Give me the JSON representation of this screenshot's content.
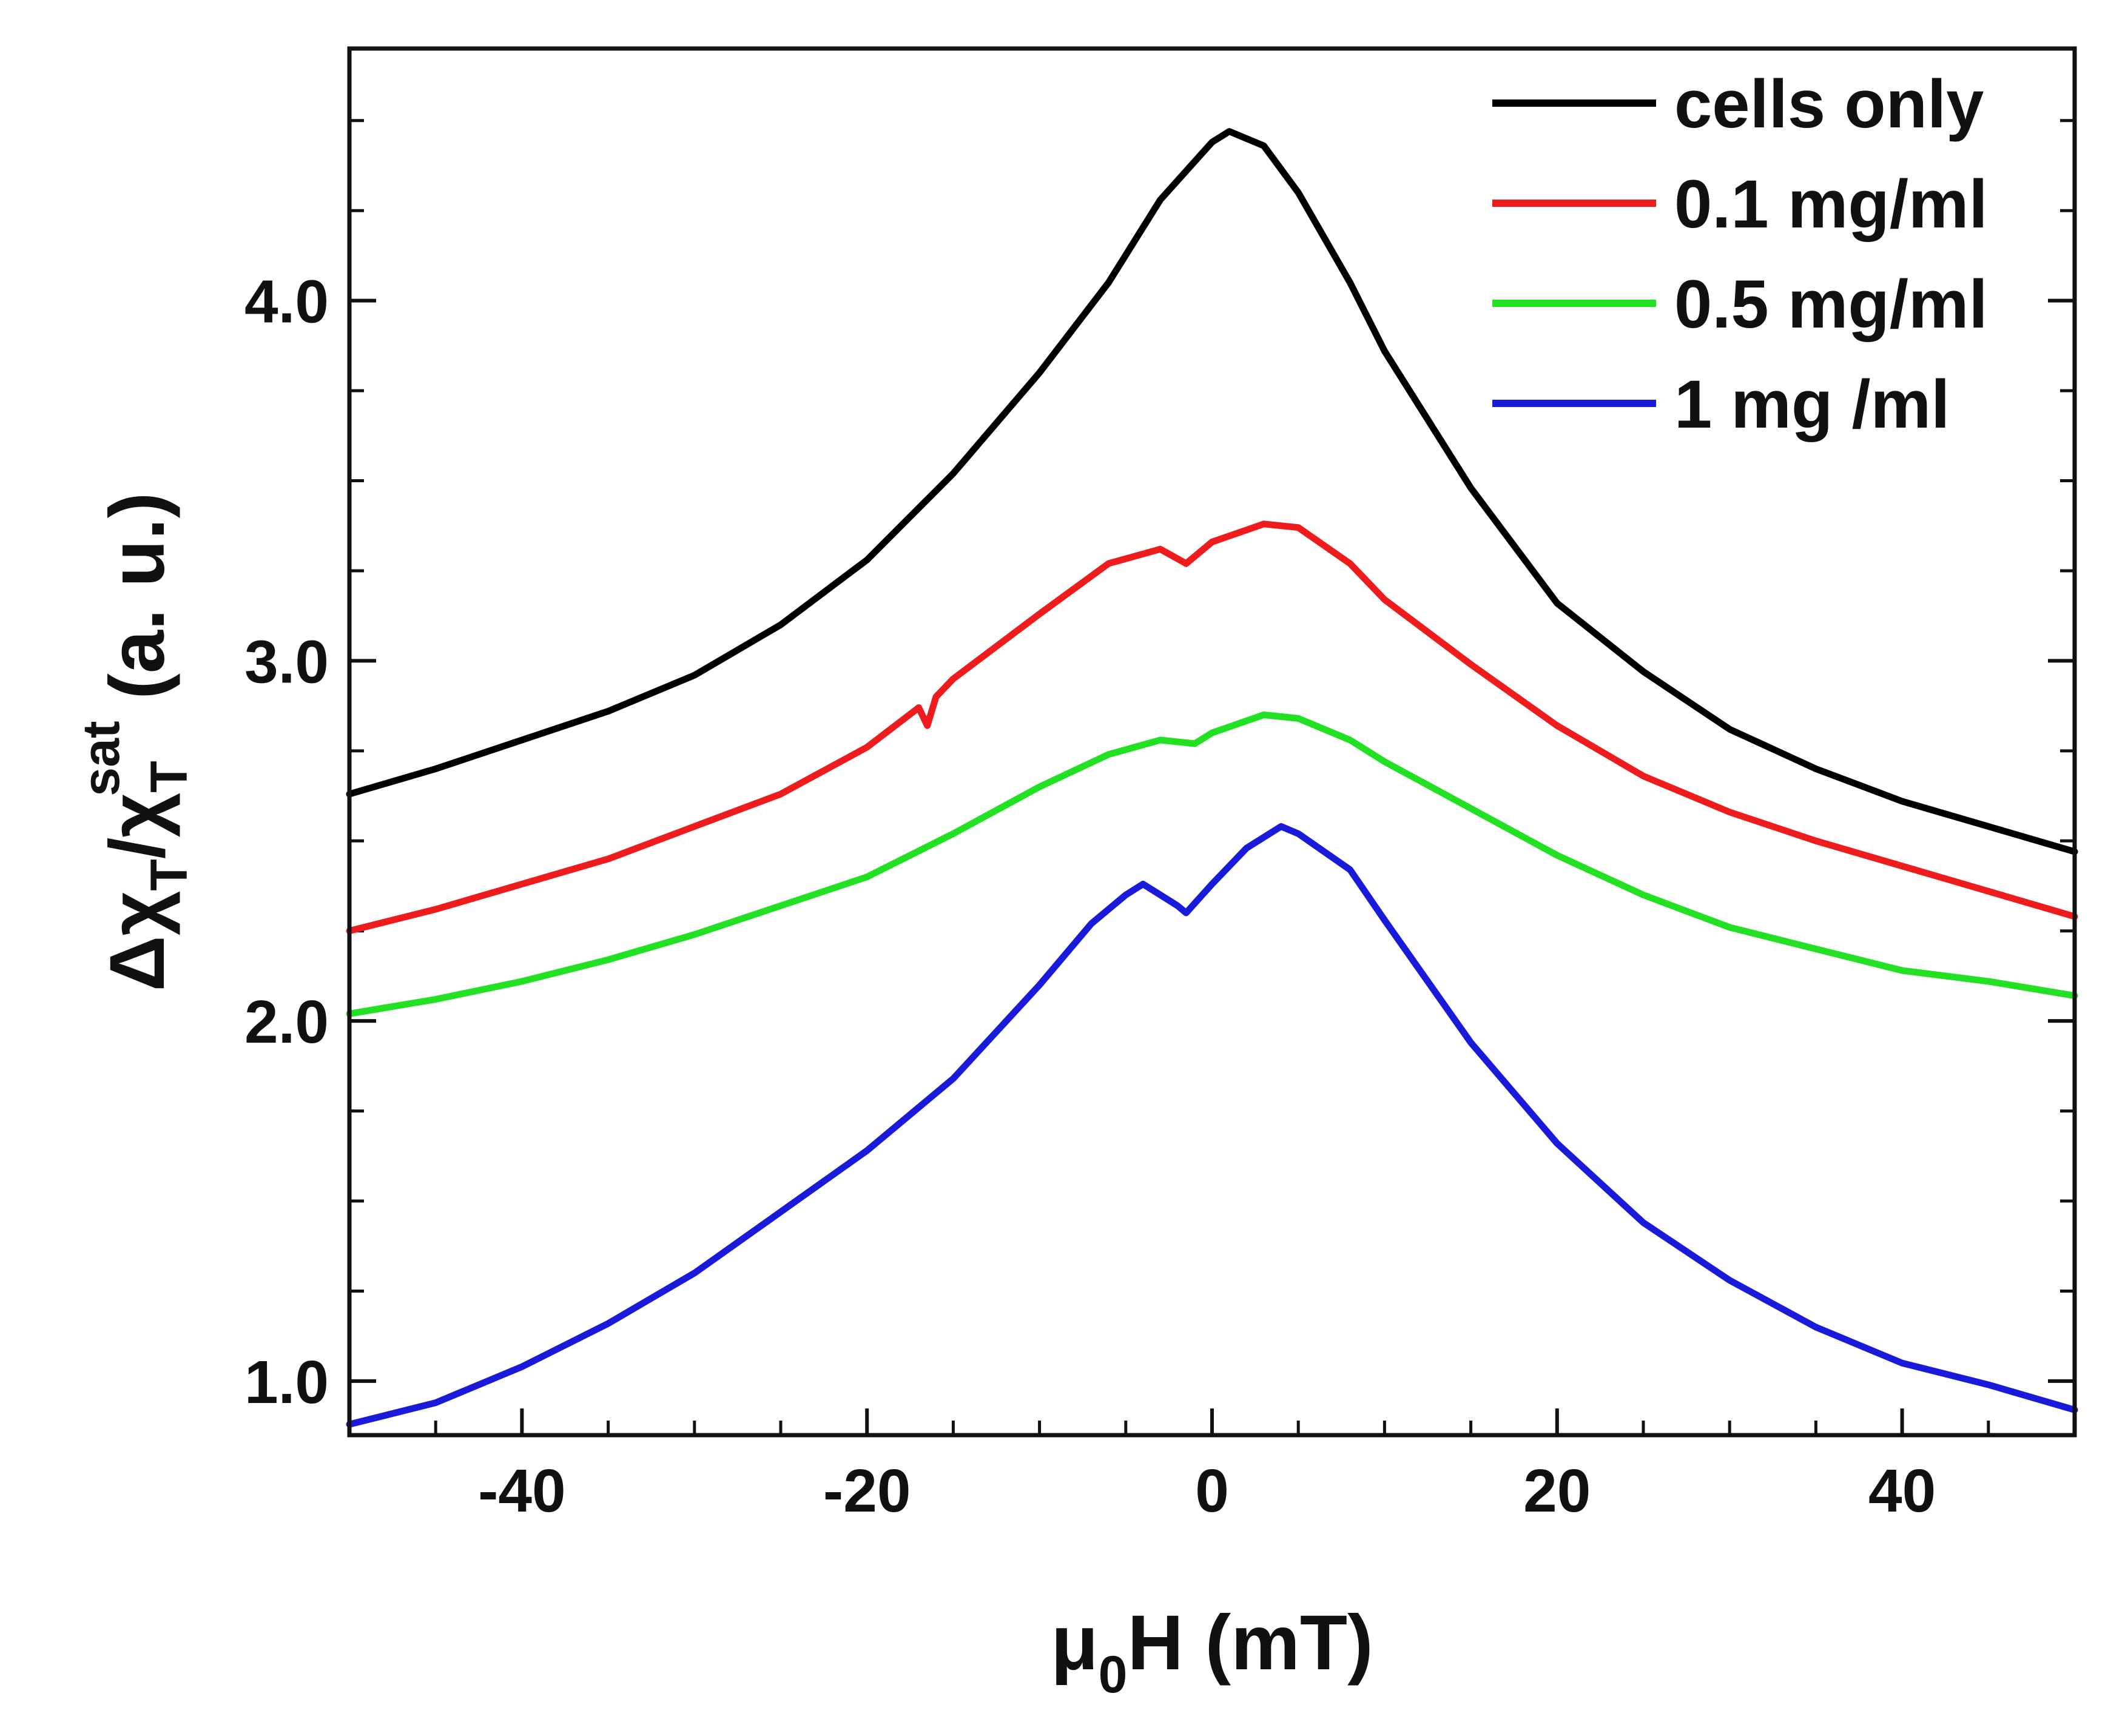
{
  "chart_data": {
    "type": "line",
    "title": "",
    "xlabel": {
      "main": "μ",
      "sub": "0",
      "tail": "H (mT)"
    },
    "ylabel": {
      "delta": "Δχ",
      "sub1": "T",
      "slash": "/χ",
      "sub2": "T",
      "sup": "sat",
      "tail": " (a. u.)"
    },
    "xlim": [
      -50,
      50
    ],
    "ylim": [
      0.85,
      4.7
    ],
    "x_ticks": [
      -40,
      -20,
      0,
      20,
      40
    ],
    "x_tick_labels": [
      "-40",
      "-20",
      "0",
      "20",
      "40"
    ],
    "x_minor_step": 5,
    "y_ticks": [
      1.0,
      2.0,
      3.0,
      4.0
    ],
    "y_tick_labels": [
      "1.0",
      "2.0",
      "3.0",
      "4.0"
    ],
    "y_minor_step": 0.25,
    "grid": false,
    "legend_position": "top-right",
    "series": [
      {
        "name": "cells only",
        "color": "#000000",
        "x": [
          -50,
          -45,
          -40,
          -35,
          -30,
          -25,
          -20,
          -15,
          -10,
          -6,
          -3,
          0,
          1,
          3,
          5,
          8,
          10,
          15,
          20,
          25,
          30,
          35,
          40,
          45,
          50
        ],
        "y": [
          2.63,
          2.7,
          2.78,
          2.86,
          2.96,
          3.1,
          3.28,
          3.52,
          3.8,
          4.05,
          4.28,
          4.44,
          4.47,
          4.43,
          4.3,
          4.05,
          3.86,
          3.48,
          3.16,
          2.97,
          2.81,
          2.7,
          2.61,
          2.54,
          2.47
        ]
      },
      {
        "name": "0.1 mg/ml",
        "color": "#ee1c1c",
        "x": [
          -50,
          -45,
          -40,
          -35,
          -30,
          -25,
          -20,
          -17,
          -16.5,
          -16,
          -15,
          -10,
          -6,
          -3,
          -1.5,
          0,
          3,
          5,
          8,
          10,
          15,
          20,
          25,
          30,
          35,
          40,
          45,
          50
        ],
        "y": [
          2.25,
          2.31,
          2.38,
          2.45,
          2.54,
          2.63,
          2.76,
          2.87,
          2.82,
          2.9,
          2.95,
          3.13,
          3.27,
          3.31,
          3.27,
          3.33,
          3.38,
          3.37,
          3.27,
          3.17,
          2.99,
          2.82,
          2.68,
          2.58,
          2.5,
          2.43,
          2.36,
          2.29
        ]
      },
      {
        "name": "0.5 mg/ml",
        "color": "#22e022",
        "x": [
          -50,
          -45,
          -40,
          -35,
          -30,
          -25,
          -20,
          -15,
          -10,
          -6,
          -3,
          -1,
          0,
          3,
          5,
          8,
          10,
          15,
          20,
          25,
          30,
          35,
          40,
          45,
          50
        ],
        "y": [
          2.02,
          2.06,
          2.11,
          2.17,
          2.24,
          2.32,
          2.4,
          2.52,
          2.65,
          2.74,
          2.78,
          2.77,
          2.8,
          2.85,
          2.84,
          2.78,
          2.72,
          2.59,
          2.46,
          2.35,
          2.26,
          2.2,
          2.14,
          2.11,
          2.07
        ]
      },
      {
        "name": "1 mg /ml",
        "color": "#1a1adb",
        "x": [
          -50,
          -45,
          -40,
          -35,
          -30,
          -25,
          -20,
          -15,
          -10,
          -7,
          -5,
          -4,
          -2,
          -1.5,
          0,
          2,
          4,
          5,
          8,
          10,
          15,
          20,
          25,
          30,
          35,
          40,
          45,
          50
        ],
        "y": [
          0.88,
          0.94,
          1.04,
          1.16,
          1.3,
          1.47,
          1.64,
          1.84,
          2.1,
          2.27,
          2.35,
          2.38,
          2.32,
          2.3,
          2.38,
          2.48,
          2.54,
          2.52,
          2.42,
          2.28,
          1.94,
          1.66,
          1.44,
          1.28,
          1.15,
          1.05,
          0.99,
          0.92
        ]
      }
    ]
  }
}
